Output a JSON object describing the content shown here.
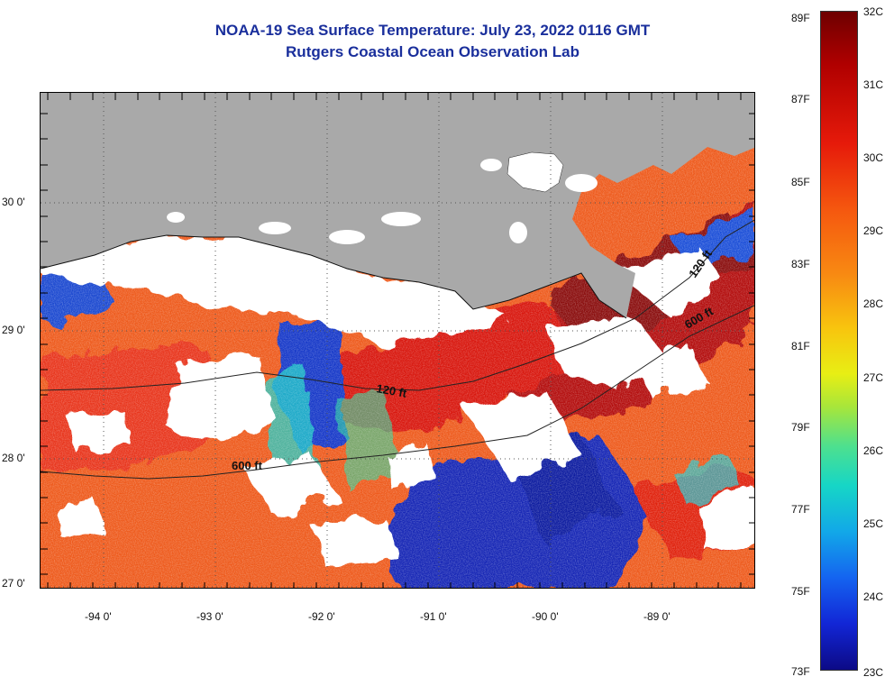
{
  "title": {
    "line1": "NOAA-19 Sea Surface Temperature:  July 23, 2022 0116 GMT",
    "line2": "Rutgers Coastal Ocean Observation Lab"
  },
  "map": {
    "latitude_labels": [
      "30 0'",
      "29 0'",
      "28 0'",
      "27 0'"
    ],
    "longitude_labels": [
      "-94 0'",
      "-93 0'",
      "-92 0'",
      "-91 0'",
      "-90 0'",
      "-89 0'"
    ],
    "contour_labels": [
      "120 ft",
      "600 ft",
      "600 ft",
      "120 ft"
    ],
    "colors": {
      "land": "#a9a9a9",
      "cloud": "#ffffff",
      "warm_dark": "#9e0a0a",
      "warm": "#e0200f",
      "orange": "#f0621a",
      "cool": "#1030c0",
      "cyan": "#17c9d8"
    }
  },
  "colorbar": {
    "fahrenheit_labels": [
      "89F",
      "87F",
      "85F",
      "83F",
      "81F",
      "79F",
      "77F",
      "75F",
      "73F"
    ],
    "celsius_labels": [
      "32C",
      "31C",
      "30C",
      "29C",
      "28C",
      "27C",
      "26C",
      "25C",
      "24C",
      "23C"
    ]
  }
}
